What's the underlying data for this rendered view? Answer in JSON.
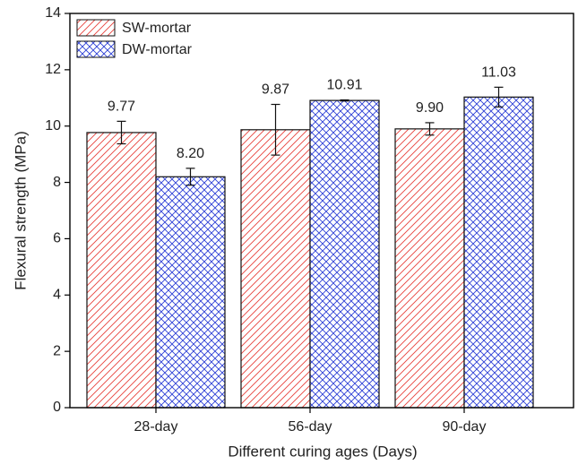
{
  "chart_data": {
    "type": "bar",
    "x_label": "Different curing ages (Days)",
    "y_label": "Flexural strength (MPa)",
    "categories": [
      "28-day",
      "56-day",
      "90-day"
    ],
    "series": [
      {
        "name": "SW-mortar",
        "color": "#e8423c",
        "pattern": "diagonal",
        "values": [
          9.77,
          9.87,
          9.9
        ],
        "value_labels": [
          "9.77",
          "9.87",
          "9.90"
        ],
        "errors": [
          0.4,
          0.9,
          0.22
        ]
      },
      {
        "name": "DW-mortar",
        "color": "#2d3fd6",
        "pattern": "crosshatch",
        "values": [
          8.2,
          10.91,
          11.03
        ],
        "value_labels": [
          "8.20",
          "10.91",
          "11.03"
        ],
        "errors": [
          0.3,
          0.02,
          0.35
        ]
      }
    ],
    "ylim": [
      0,
      14
    ],
    "yticks": [
      0,
      2,
      4,
      6,
      8,
      10,
      12,
      14
    ],
    "legend": "upper left"
  }
}
